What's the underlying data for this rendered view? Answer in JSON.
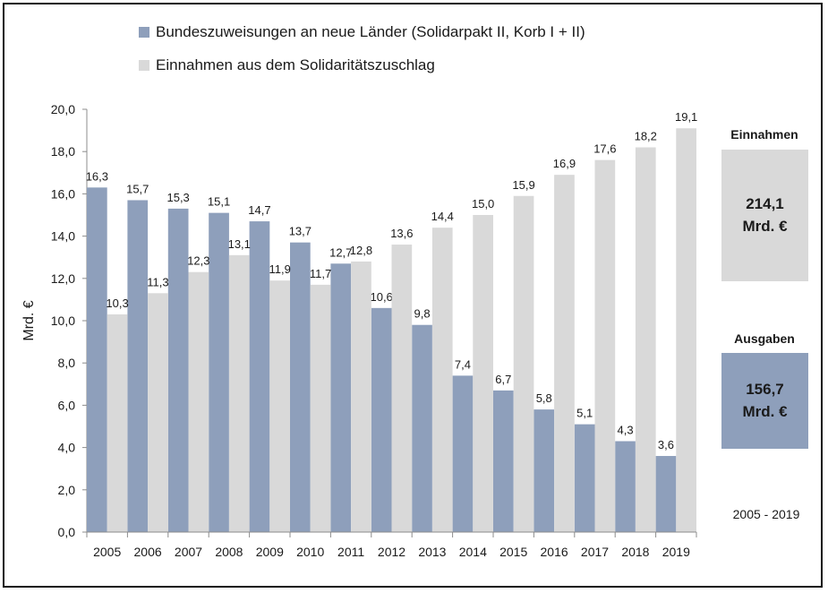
{
  "chart_data": {
    "type": "bar",
    "title": "",
    "xlabel": "",
    "ylabel": "Mrd. €",
    "ylim": [
      0,
      20
    ],
    "yticks": [
      "0,0",
      "2,0",
      "4,0",
      "6,0",
      "8,0",
      "10,0",
      "12,0",
      "14,0",
      "16,0",
      "18,0",
      "20,0"
    ],
    "categories": [
      "2005",
      "2006",
      "2007",
      "2008",
      "2009",
      "2010",
      "2011",
      "2012",
      "2013",
      "2014",
      "2015",
      "2016",
      "2017",
      "2018",
      "2019"
    ],
    "series": [
      {
        "name": "Bundeszuweisungen an neue Länder (Solidarpakt II, Korb I + II)",
        "color": "#8e9fbb",
        "values": [
          16.3,
          15.7,
          15.3,
          15.1,
          14.7,
          13.7,
          12.7,
          10.6,
          9.8,
          7.4,
          6.7,
          5.8,
          5.1,
          4.3,
          3.6
        ],
        "labels": [
          "16,3",
          "15,7",
          "15,3",
          "15,1",
          "14,7",
          "13,7",
          "12,7",
          "10,6",
          "9,8",
          "7,4",
          "6,7",
          "5,8",
          "5,1",
          "4,3",
          "3,6"
        ]
      },
      {
        "name": "Einnahmen aus dem Solidaritätszuschlag",
        "color": "#d9d9d9",
        "values": [
          10.3,
          11.3,
          12.3,
          13.1,
          11.9,
          11.7,
          12.8,
          13.6,
          14.4,
          15.0,
          15.9,
          16.9,
          17.6,
          18.2,
          19.1
        ],
        "labels": [
          "10,3",
          "11,3",
          "12,3",
          "13,1",
          "11,9",
          "11,7",
          "12,8",
          "13,6",
          "14,4",
          "15,0",
          "15,9",
          "16,9",
          "17,6",
          "18,2",
          "19,1"
        ]
      }
    ]
  },
  "summary": {
    "einnahmen_label": "Einnahmen",
    "einnahmen_value": "214,1",
    "einnahmen_unit": "Mrd. €",
    "einnahmen_color": "#d9d9d9",
    "ausgaben_label": "Ausgaben",
    "ausgaben_value": "156,7",
    "ausgaben_unit": "Mrd. €",
    "ausgaben_color": "#8e9fbb",
    "period": "2005 - 2019"
  }
}
